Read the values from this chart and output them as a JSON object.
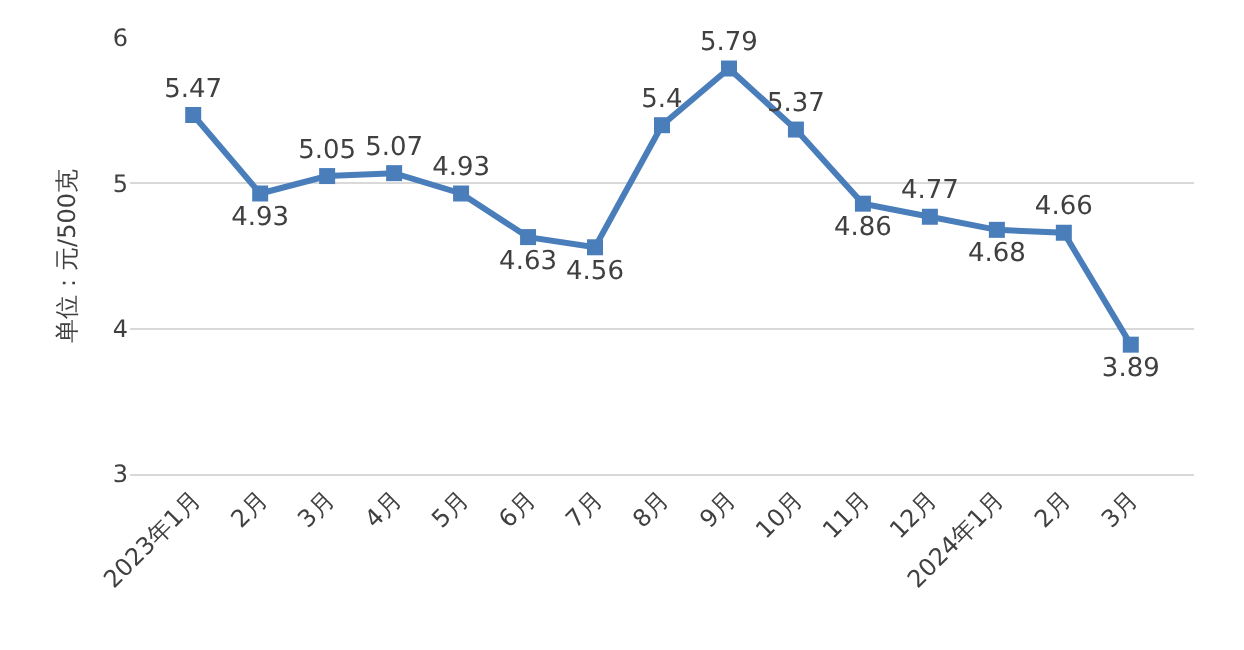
{
  "chart_data": {
    "type": "line",
    "ylabel": "单位：元/500克",
    "categories": [
      "2023年1月",
      "2月",
      "3月",
      "4月",
      "5月",
      "6月",
      "7月",
      "8月",
      "9月",
      "10月",
      "11月",
      "12月",
      "2024年1月",
      "2月",
      "3月"
    ],
    "series": [
      {
        "color": "#4a7ebb",
        "values": [
          5.47,
          4.93,
          5.05,
          5.07,
          4.93,
          4.63,
          4.56,
          5.4,
          5.79,
          5.37,
          4.86,
          4.77,
          4.68,
          4.66,
          3.89
        ]
      }
    ],
    "ylim": [
      3,
      6
    ],
    "yticks": [
      3,
      4,
      5,
      6
    ],
    "grid": "y",
    "marker": "square",
    "line_style": "solid",
    "data_labels": true
  }
}
